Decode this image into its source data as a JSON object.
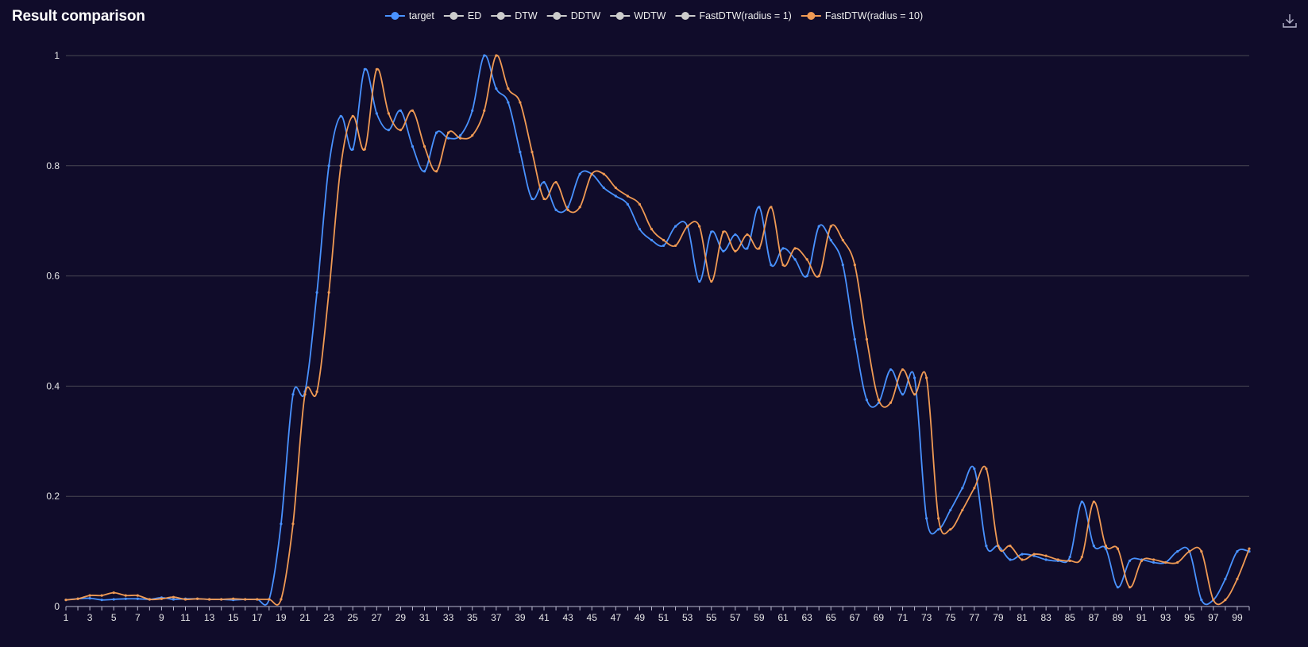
{
  "header": {
    "title": "Result comparison",
    "download_icon": "download-icon"
  },
  "colors": {
    "background": "#100c2a",
    "grid": "#484753",
    "axis": "#b9b8ce",
    "inactive": "#cccccc"
  },
  "chart_data": {
    "type": "line",
    "title": "Result comparison",
    "xlabel": "",
    "ylabel": "",
    "ylim": [
      0,
      1
    ],
    "yticks": [
      "0",
      "0.2",
      "0.4",
      "0.6",
      "0.8",
      "1"
    ],
    "x": [
      1,
      2,
      3,
      4,
      5,
      6,
      7,
      8,
      9,
      10,
      11,
      12,
      13,
      14,
      15,
      16,
      17,
      18,
      19,
      20,
      21,
      22,
      23,
      24,
      25,
      26,
      27,
      28,
      29,
      30,
      31,
      32,
      33,
      34,
      35,
      36,
      37,
      38,
      39,
      40,
      41,
      42,
      43,
      44,
      45,
      46,
      47,
      48,
      49,
      50,
      51,
      52,
      53,
      54,
      55,
      56,
      57,
      58,
      59,
      60,
      61,
      62,
      63,
      64,
      65,
      66,
      67,
      68,
      69,
      70,
      71,
      72,
      73,
      74,
      75,
      76,
      77,
      78,
      79,
      80,
      81,
      82,
      83,
      84,
      85,
      86,
      87,
      88,
      89,
      90,
      91,
      92,
      93,
      94,
      95,
      96,
      97,
      98,
      99,
      100
    ],
    "xtick_labels": [
      "1",
      "3",
      "5",
      "7",
      "9",
      "11",
      "13",
      "15",
      "17",
      "19",
      "21",
      "23",
      "25",
      "27",
      "29",
      "31",
      "33",
      "35",
      "37",
      "39",
      "41",
      "43",
      "45",
      "47",
      "49",
      "51",
      "53",
      "55",
      "57",
      "59",
      "61",
      "63",
      "65",
      "67",
      "69",
      "71",
      "73",
      "75",
      "77",
      "79",
      "81",
      "83",
      "85",
      "87",
      "89",
      "91",
      "93",
      "95",
      "97",
      "99"
    ],
    "legend_position": "top-center",
    "grid": true,
    "series": [
      {
        "name": "target",
        "color": "#4992ff",
        "active": true,
        "values": [
          0.012,
          0.014,
          0.015,
          0.012,
          0.013,
          0.014,
          0.014,
          0.013,
          0.016,
          0.013,
          0.014,
          0.014,
          0.013,
          0.013,
          0.012,
          0.013,
          0.013,
          0.013,
          0.15,
          0.385,
          0.39,
          0.57,
          0.8,
          0.89,
          0.83,
          0.975,
          0.895,
          0.865,
          0.9,
          0.835,
          0.79,
          0.86,
          0.85,
          0.855,
          0.9,
          1.0,
          0.94,
          0.915,
          0.825,
          0.74,
          0.77,
          0.72,
          0.725,
          0.785,
          0.785,
          0.76,
          0.745,
          0.73,
          0.685,
          0.665,
          0.655,
          0.69,
          0.69,
          0.59,
          0.68,
          0.645,
          0.675,
          0.65,
          0.725,
          0.62,
          0.65,
          0.63,
          0.6,
          0.69,
          0.665,
          0.62,
          0.485,
          0.375,
          0.37,
          0.43,
          0.385,
          0.415,
          0.16,
          0.14,
          0.175,
          0.215,
          0.25,
          0.11,
          0.11,
          0.085,
          0.095,
          0.092,
          0.085,
          0.083,
          0.09,
          0.19,
          0.11,
          0.105,
          0.035,
          0.083,
          0.085,
          0.08,
          0.08,
          0.1,
          0.1,
          0.012,
          0.012,
          0.05,
          0.1,
          0.1
        ]
      },
      {
        "name": "ED",
        "color": "#cccccc",
        "active": false
      },
      {
        "name": "DTW",
        "color": "#cccccc",
        "active": false
      },
      {
        "name": "DDTW",
        "color": "#cccccc",
        "active": false
      },
      {
        "name": "WDTW",
        "color": "#cccccc",
        "active": false
      },
      {
        "name": "FastDTW(radius = 1)",
        "color": "#19b893",
        "active": false
      },
      {
        "name": "FastDTW(radius = 10)",
        "color": "#f09a54",
        "active": true,
        "values": [
          0.012,
          0.014,
          0.02,
          0.02,
          0.025,
          0.02,
          0.02,
          0.013,
          0.014,
          0.017,
          0.013,
          0.014,
          0.013,
          0.013,
          0.014,
          0.013,
          0.013,
          0.013,
          0.013,
          0.15,
          0.385,
          0.39,
          0.57,
          0.8,
          0.89,
          0.83,
          0.975,
          0.895,
          0.865,
          0.9,
          0.835,
          0.79,
          0.86,
          0.85,
          0.855,
          0.9,
          1.0,
          0.94,
          0.915,
          0.825,
          0.74,
          0.77,
          0.72,
          0.725,
          0.785,
          0.785,
          0.76,
          0.745,
          0.73,
          0.685,
          0.665,
          0.655,
          0.69,
          0.69,
          0.59,
          0.68,
          0.645,
          0.675,
          0.65,
          0.725,
          0.62,
          0.65,
          0.63,
          0.6,
          0.69,
          0.665,
          0.62,
          0.485,
          0.375,
          0.37,
          0.43,
          0.385,
          0.415,
          0.16,
          0.14,
          0.175,
          0.215,
          0.25,
          0.11,
          0.11,
          0.085,
          0.095,
          0.092,
          0.085,
          0.083,
          0.09,
          0.19,
          0.11,
          0.105,
          0.035,
          0.083,
          0.085,
          0.08,
          0.08,
          0.1,
          0.1,
          0.012,
          0.012,
          0.05,
          0.105
        ]
      }
    ]
  }
}
